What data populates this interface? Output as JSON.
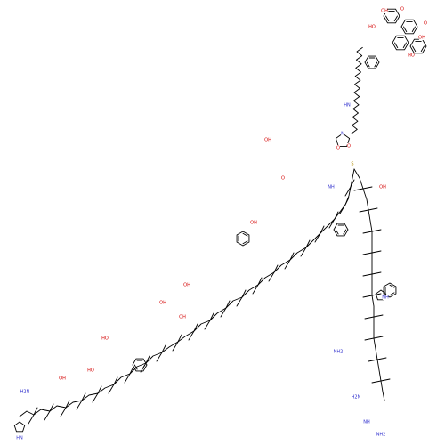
{
  "colors": {
    "background": "#ffffff",
    "bond": "#000000",
    "oxygen": "#d40000",
    "nitrogen": "#2a2acc",
    "sulfur": "#b08c00"
  },
  "labels": {
    "carboxyl_groups": [
      "OH",
      "OH",
      "OH",
      "OH"
    ],
    "hydroxyl_groups": [
      "OH",
      "OH",
      "HO",
      "HO",
      "OH",
      "OH",
      "OH",
      "HO",
      "HO"
    ],
    "amides": [
      "H2N",
      "O",
      "H2N",
      "NH2",
      "NH",
      "NH2"
    ],
    "sulfur": "S",
    "nitrogen_labels": [
      "HN",
      "NH",
      "N",
      "NH",
      "HN"
    ],
    "ketone_o": [
      "O",
      "O",
      "O",
      "O"
    ]
  }
}
